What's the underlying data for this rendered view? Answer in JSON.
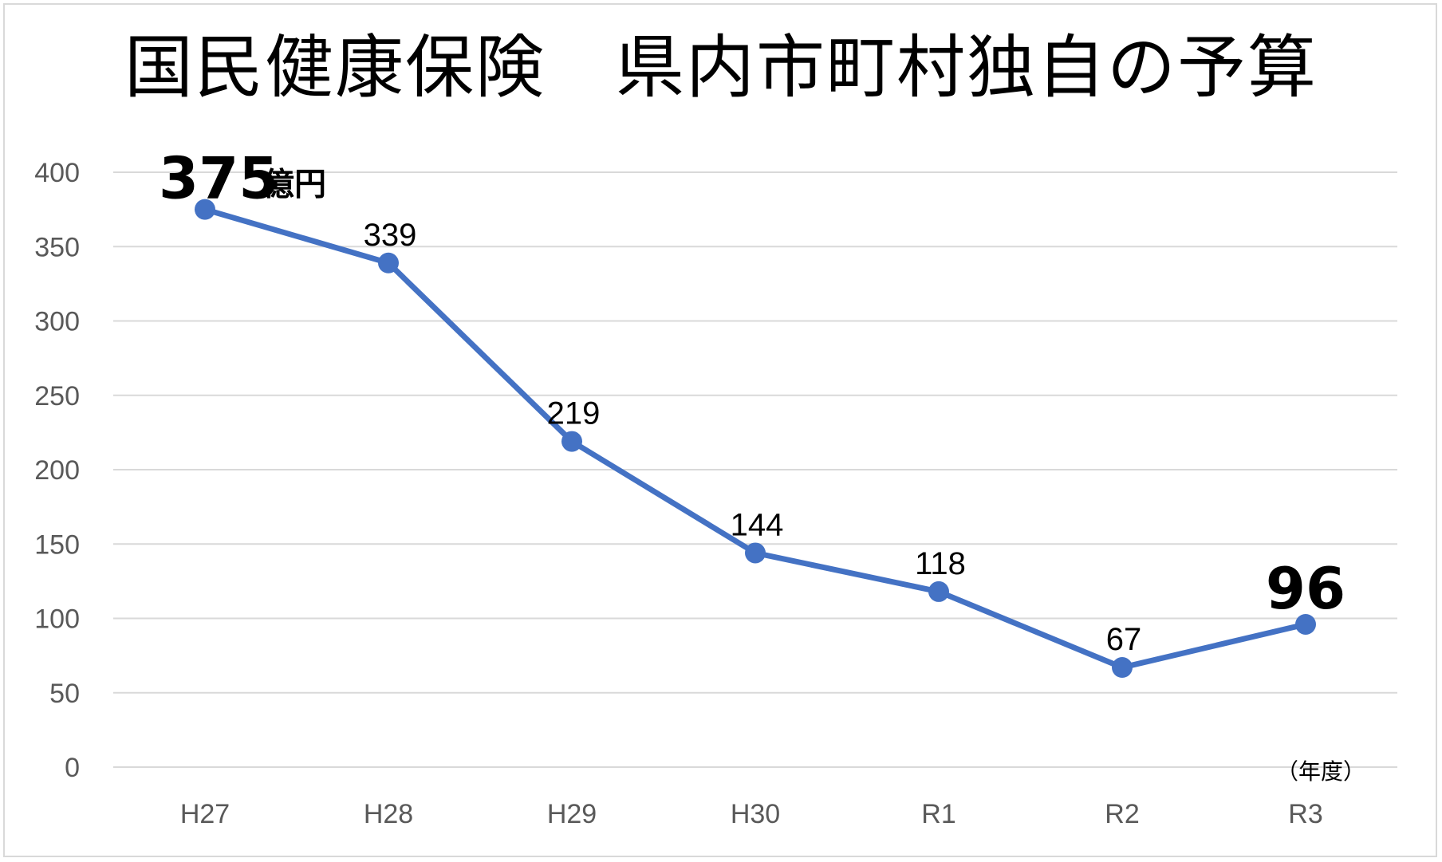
{
  "chart_data": {
    "type": "line",
    "title": "国民健康保険　県内市町村独自の予算",
    "categories": [
      "H27",
      "H28",
      "H29",
      "H30",
      "R1",
      "R2",
      "R3"
    ],
    "series": [
      {
        "values": [
          375,
          339,
          219,
          144,
          118,
          67,
          96
        ],
        "data_labels": [
          "375",
          "339",
          "219",
          "144",
          "118",
          "67",
          "96"
        ]
      }
    ],
    "value_unit": "億円",
    "x_unit": "（年度）",
    "yticks": [
      "0",
      "50",
      "100",
      "150",
      "200",
      "250",
      "300",
      "350",
      "400"
    ],
    "ylim": [
      0,
      400
    ],
    "grid": true,
    "legend": "none",
    "line_color": "#4472c4"
  }
}
